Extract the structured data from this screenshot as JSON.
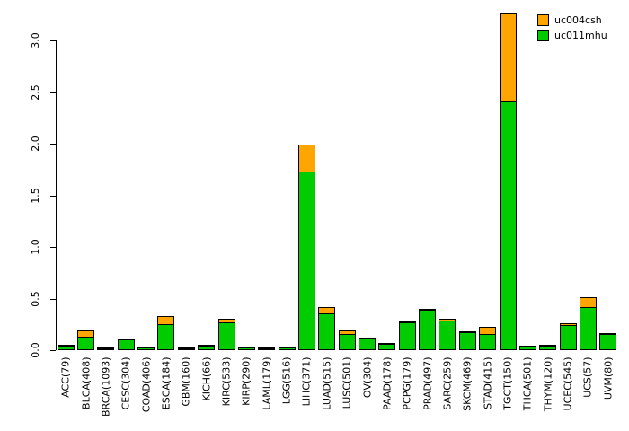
{
  "chart_data": {
    "type": "bar",
    "stacked": true,
    "title": "",
    "xlabel": "",
    "ylabel": "",
    "ylim": [
      0,
      3.3
    ],
    "ytick_values": [
      0.0,
      0.5,
      1.0,
      1.5,
      2.0,
      2.5,
      3.0
    ],
    "ytick_labels": [
      "0.0",
      "0.5",
      "1.0",
      "1.5",
      "2.0",
      "2.5",
      "3.0"
    ],
    "grid": false,
    "bar_border_color": "#000000",
    "background_color": "#ffffff",
    "categories": [
      "ACC(79)",
      "BLCA(408)",
      "BRCA(1093)",
      "CESC(304)",
      "COAD(406)",
      "ESCA(184)",
      "GBM(160)",
      "KICH(66)",
      "KIRC(533)",
      "KIRP(290)",
      "LAML(179)",
      "LGG(516)",
      "LIHC(371)",
      "LUAD(515)",
      "LUSC(501)",
      "OV(304)",
      "PAAD(178)",
      "PCPG(179)",
      "PRAD(497)",
      "SARC(259)",
      "SKCM(469)",
      "STAD(415)",
      "TGCT(150)",
      "THCA(501)",
      "THYM(120)",
      "UCEC(545)",
      "UCS(57)",
      "UVM(80)"
    ],
    "series": [
      {
        "name": "uc011mhu",
        "color": "#00CC00",
        "values": [
          0.04,
          0.13,
          0.015,
          0.1,
          0.03,
          0.25,
          0.008,
          0.04,
          0.27,
          0.025,
          0.004,
          0.027,
          1.73,
          0.36,
          0.16,
          0.11,
          0.06,
          0.27,
          0.39,
          0.29,
          0.17,
          0.16,
          2.41,
          0.035,
          0.045,
          0.24,
          0.42,
          0.155
        ]
      },
      {
        "name": "uc004csh",
        "color": "#FFA500",
        "values": [
          0.01,
          0.07,
          0.005,
          0.01,
          0.005,
          0.09,
          0.002,
          0.01,
          0.04,
          0.005,
          0.001,
          0.003,
          0.27,
          0.07,
          0.04,
          0.01,
          0.01,
          0.02,
          0.01,
          0.03,
          0.02,
          0.08,
          0.86,
          0.005,
          0.005,
          0.03,
          0.1,
          0.01
        ]
      }
    ],
    "legend": {
      "position": "top-right",
      "entries": [
        {
          "label": "uc004csh",
          "color": "#FFA500"
        },
        {
          "label": "uc011mhu",
          "color": "#00CC00"
        }
      ]
    }
  }
}
